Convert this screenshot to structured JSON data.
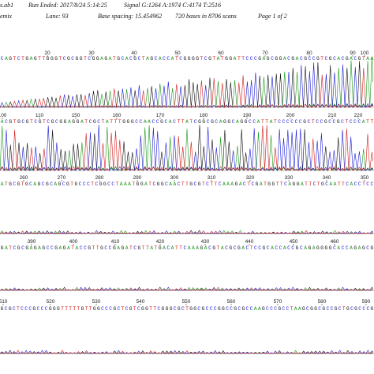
{
  "header": {
    "file": "s.ab1",
    "run_ended": "Run Ended: 2017/8/24 5:14:25",
    "signal": "Signal G:1264 A:1974 C:4174 T:2516",
    "dye": "emix",
    "lane": "Lane: 93",
    "base_spacing": "Base spacing: 15.454962",
    "bases_scans": "720 bases in 8706 scans",
    "page": "Page 1 of 2"
  },
  "colors": {
    "A": "#1a9a1a",
    "C": "#1c1cd8",
    "G": "#111111",
    "T": "#d41c1c"
  },
  "chart_data": {
    "type": "line",
    "title": "",
    "rows": [
      {
        "sequence": "CAGTCTGAGTTGGGTCGCGGTCGGAGATGCACGCTAGCACCATCGGGGTCGTATGGATTCCCGAGCGGACGACGCCGTCGCACGACGTAA",
        "ticks": [
          20,
          30,
          40,
          50,
          60,
          70,
          80,
          90,
          100
        ],
        "amplitude": "rising"
      },
      {
        "sequence": "ACGTGCGTCGTCGCGGAGGATCGCTATTTGGGCCAACCGCACTTATCGGCGCAGGCAGGCCATTATCCCCCCGCTCCGCCGCTCCCATT",
        "ticks": [
          100,
          110,
          150,
          160,
          170,
          180,
          190,
          200,
          210,
          220
        ],
        "amplitude": "high"
      },
      {
        "sequence": "ATGCGTGCAGCGCAGCGTGCCCTCGGCCTAAATGGATCGGCAACTTGCGTCTTCAAAGACTCGATGGTTCAGGATTCTGCAATTCACCTCC",
        "ticks": [
          260,
          270,
          280,
          290,
          300,
          310,
          320,
          330,
          340,
          350
        ],
        "amplitude": "low"
      },
      {
        "sequence": "GATCGCGAGAGCCGAGATACCGTTGCCGAGATCGTTATGACATTCAAAGACGTACGCGACTCCGCACCACCGCAGAGGGGCACCAGAGCG",
        "ticks": [
          390,
          400,
          410,
          420,
          430,
          440,
          450,
          460
        ],
        "amplitude": "low"
      },
      {
        "sequence": "GCGCTCCCGCCCGGGTTTTTGTTGGCCCGCTCGTCGGTTCGGGCGCTGGCGCCCGGCCGCGCCAAGCCCGCCTAAGCGGCGCCGCTGCGCCCG",
        "ticks": [
          510,
          520,
          530,
          540,
          550,
          560,
          570,
          580,
          590
        ],
        "amplitude": "low"
      }
    ]
  }
}
